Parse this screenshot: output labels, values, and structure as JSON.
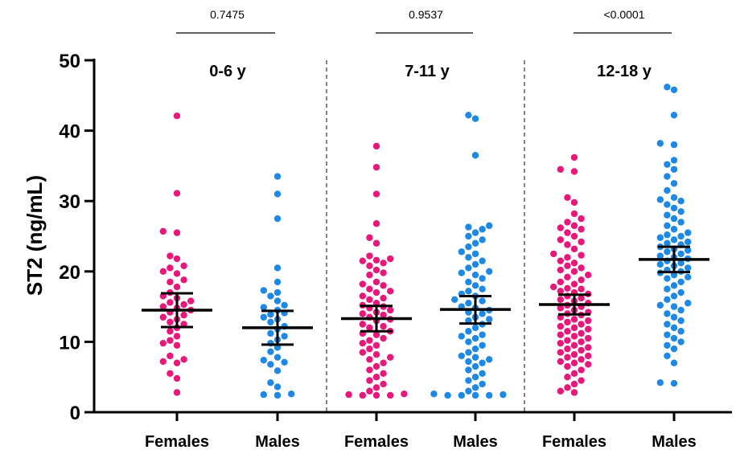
{
  "chart_data": {
    "type": "scatter",
    "ylabel": "ST2 (ng/mL)",
    "ylim": [
      0,
      50
    ],
    "yticks": [
      0,
      10,
      20,
      30,
      40,
      50
    ],
    "colors": {
      "Females": "#e8177a",
      "Males": "#1e88e5"
    },
    "groups": [
      {
        "label": "0-6 y",
        "p_value": "0.7475",
        "series": [
          {
            "name": "Females",
            "mean": 14.5,
            "ci": [
              12.1,
              16.9
            ],
            "values": [
              42.1,
              31.1,
              25.7,
              25.5,
              22.2,
              21.8,
              20.8,
              20.5,
              20.0,
              19.7,
              18.8,
              18.5,
              17.8,
              17.0,
              16.5,
              16.2,
              15.8,
              15.6,
              15.3,
              15.0,
              14.8,
              14.5,
              14.2,
              13.8,
              13.5,
              13.2,
              12.8,
              12.5,
              12.0,
              11.5,
              10.8,
              10.2,
              9.8,
              9.5,
              8.0,
              7.5,
              7.2,
              7.0,
              5.5,
              4.8,
              2.8
            ]
          },
          {
            "name": "Males",
            "mean": 12.0,
            "ci": [
              9.6,
              14.4
            ],
            "values": [
              33.5,
              31.0,
              27.5,
              20.5,
              18.5,
              17.3,
              17.0,
              16.5,
              15.8,
              15.2,
              14.9,
              14.5,
              14.1,
              13.9,
              13.5,
              13.2,
              12.8,
              12.2,
              11.8,
              11.2,
              10.8,
              10.3,
              9.8,
              9.2,
              8.6,
              7.8,
              7.4,
              7.1,
              6.8,
              5.9,
              4.2,
              3.6,
              2.6,
              2.5,
              2.4
            ]
          }
        ]
      },
      {
        "label": "7-11 y",
        "p_value": "0.9537",
        "series": [
          {
            "name": "Females",
            "mean": 13.3,
            "ci": [
              11.5,
              15.1
            ],
            "values": [
              37.8,
              34.8,
              31.0,
              26.8,
              24.8,
              24.0,
              22.2,
              21.8,
              21.6,
              21.5,
              21.2,
              20.8,
              20.2,
              19.8,
              19.5,
              18.5,
              18.2,
              18.0,
              17.5,
              17.2,
              17.0,
              16.5,
              16.2,
              16.0,
              15.5,
              15.2,
              15.0,
              14.8,
              14.5,
              14.2,
              14.0,
              13.8,
              13.5,
              13.2,
              13.0,
              12.5,
              12.2,
              12.0,
              11.5,
              11.2,
              11.0,
              10.5,
              10.2,
              9.8,
              9.5,
              9.0,
              8.5,
              8.2,
              7.8,
              7.5,
              7.0,
              6.5,
              6.0,
              5.5,
              5.0,
              4.5,
              4.0,
              3.5,
              3.0,
              2.6,
              2.5,
              2.4,
              2.4,
              2.4
            ]
          },
          {
            "name": "Males",
            "mean": 14.6,
            "ci": [
              12.6,
              16.5
            ],
            "values": [
              42.2,
              41.7,
              36.5,
              26.5,
              26.3,
              26.0,
              25.5,
              25.0,
              24.5,
              24.0,
              23.5,
              22.8,
              22.5,
              22.0,
              21.5,
              21.0,
              20.5,
              20.0,
              19.8,
              19.5,
              19.0,
              18.5,
              18.0,
              17.5,
              17.2,
              16.8,
              16.5,
              16.0,
              15.8,
              15.5,
              15.0,
              14.8,
              14.5,
              14.2,
              14.0,
              13.5,
              13.2,
              13.0,
              12.5,
              12.0,
              11.5,
              11.0,
              10.8,
              10.5,
              10.0,
              9.5,
              9.0,
              8.5,
              8.0,
              7.8,
              7.5,
              7.2,
              7.0,
              6.5,
              6.0,
              5.5,
              5.0,
              4.5,
              4.0,
              3.5,
              3.0,
              2.6,
              2.5,
              2.4,
              2.4,
              2.4,
              2.4
            ]
          }
        ]
      },
      {
        "label": "12-18 y",
        "p_value": "<0.0001",
        "series": [
          {
            "name": "Females",
            "mean": 15.3,
            "ci": [
              13.9,
              16.7
            ],
            "values": [
              36.2,
              34.5,
              34.2,
              30.5,
              29.8,
              28.2,
              27.5,
              27.0,
              26.5,
              26.2,
              26.0,
              25.5,
              25.0,
              24.5,
              24.2,
              23.8,
              23.2,
              22.5,
              22.3,
              22.0,
              21.5,
              21.2,
              20.8,
              20.5,
              20.2,
              20.0,
              19.5,
              19.2,
              18.8,
              18.5,
              18.2,
              17.8,
              17.6,
              17.5,
              17.2,
              17.0,
              16.8,
              16.5,
              16.2,
              16.0,
              15.8,
              15.5,
              15.2,
              15.0,
              14.8,
              14.5,
              14.2,
              14.0,
              13.8,
              13.5,
              13.2,
              13.0,
              12.8,
              12.5,
              12.2,
              12.0,
              11.8,
              11.5,
              11.2,
              11.0,
              10.8,
              10.5,
              10.2,
              10.0,
              9.8,
              9.5,
              9.2,
              9.0,
              8.8,
              8.5,
              8.2,
              8.0,
              7.8,
              7.5,
              7.2,
              7.0,
              6.8,
              6.5,
              6.0,
              5.5,
              5.0,
              4.5,
              4.0,
              3.5,
              3.0,
              2.8
            ]
          },
          {
            "name": "Males",
            "mean": 21.7,
            "ci": [
              19.9,
              23.5
            ],
            "values": [
              46.2,
              45.8,
              42.2,
              38.2,
              38.0,
              35.8,
              35.2,
              34.5,
              33.5,
              32.5,
              31.5,
              30.5,
              30.2,
              30.0,
              29.5,
              29.0,
              28.5,
              28.0,
              27.5,
              27.0,
              26.5,
              26.0,
              25.5,
              25.2,
              25.0,
              24.8,
              24.5,
              24.2,
              24.0,
              23.8,
              23.5,
              23.2,
              23.0,
              22.8,
              22.5,
              22.2,
              22.0,
              21.8,
              21.5,
              21.2,
              21.0,
              20.8,
              20.5,
              20.2,
              20.0,
              19.8,
              19.5,
              19.2,
              19.0,
              18.5,
              18.0,
              17.5,
              17.0,
              16.5,
              16.0,
              15.5,
              15.2,
              15.0,
              14.5,
              14.0,
              13.5,
              13.0,
              12.5,
              12.0,
              11.5,
              11.0,
              10.5,
              10.0,
              9.5,
              9.0,
              8.0,
              7.0,
              4.2,
              4.1
            ]
          }
        ]
      }
    ]
  }
}
